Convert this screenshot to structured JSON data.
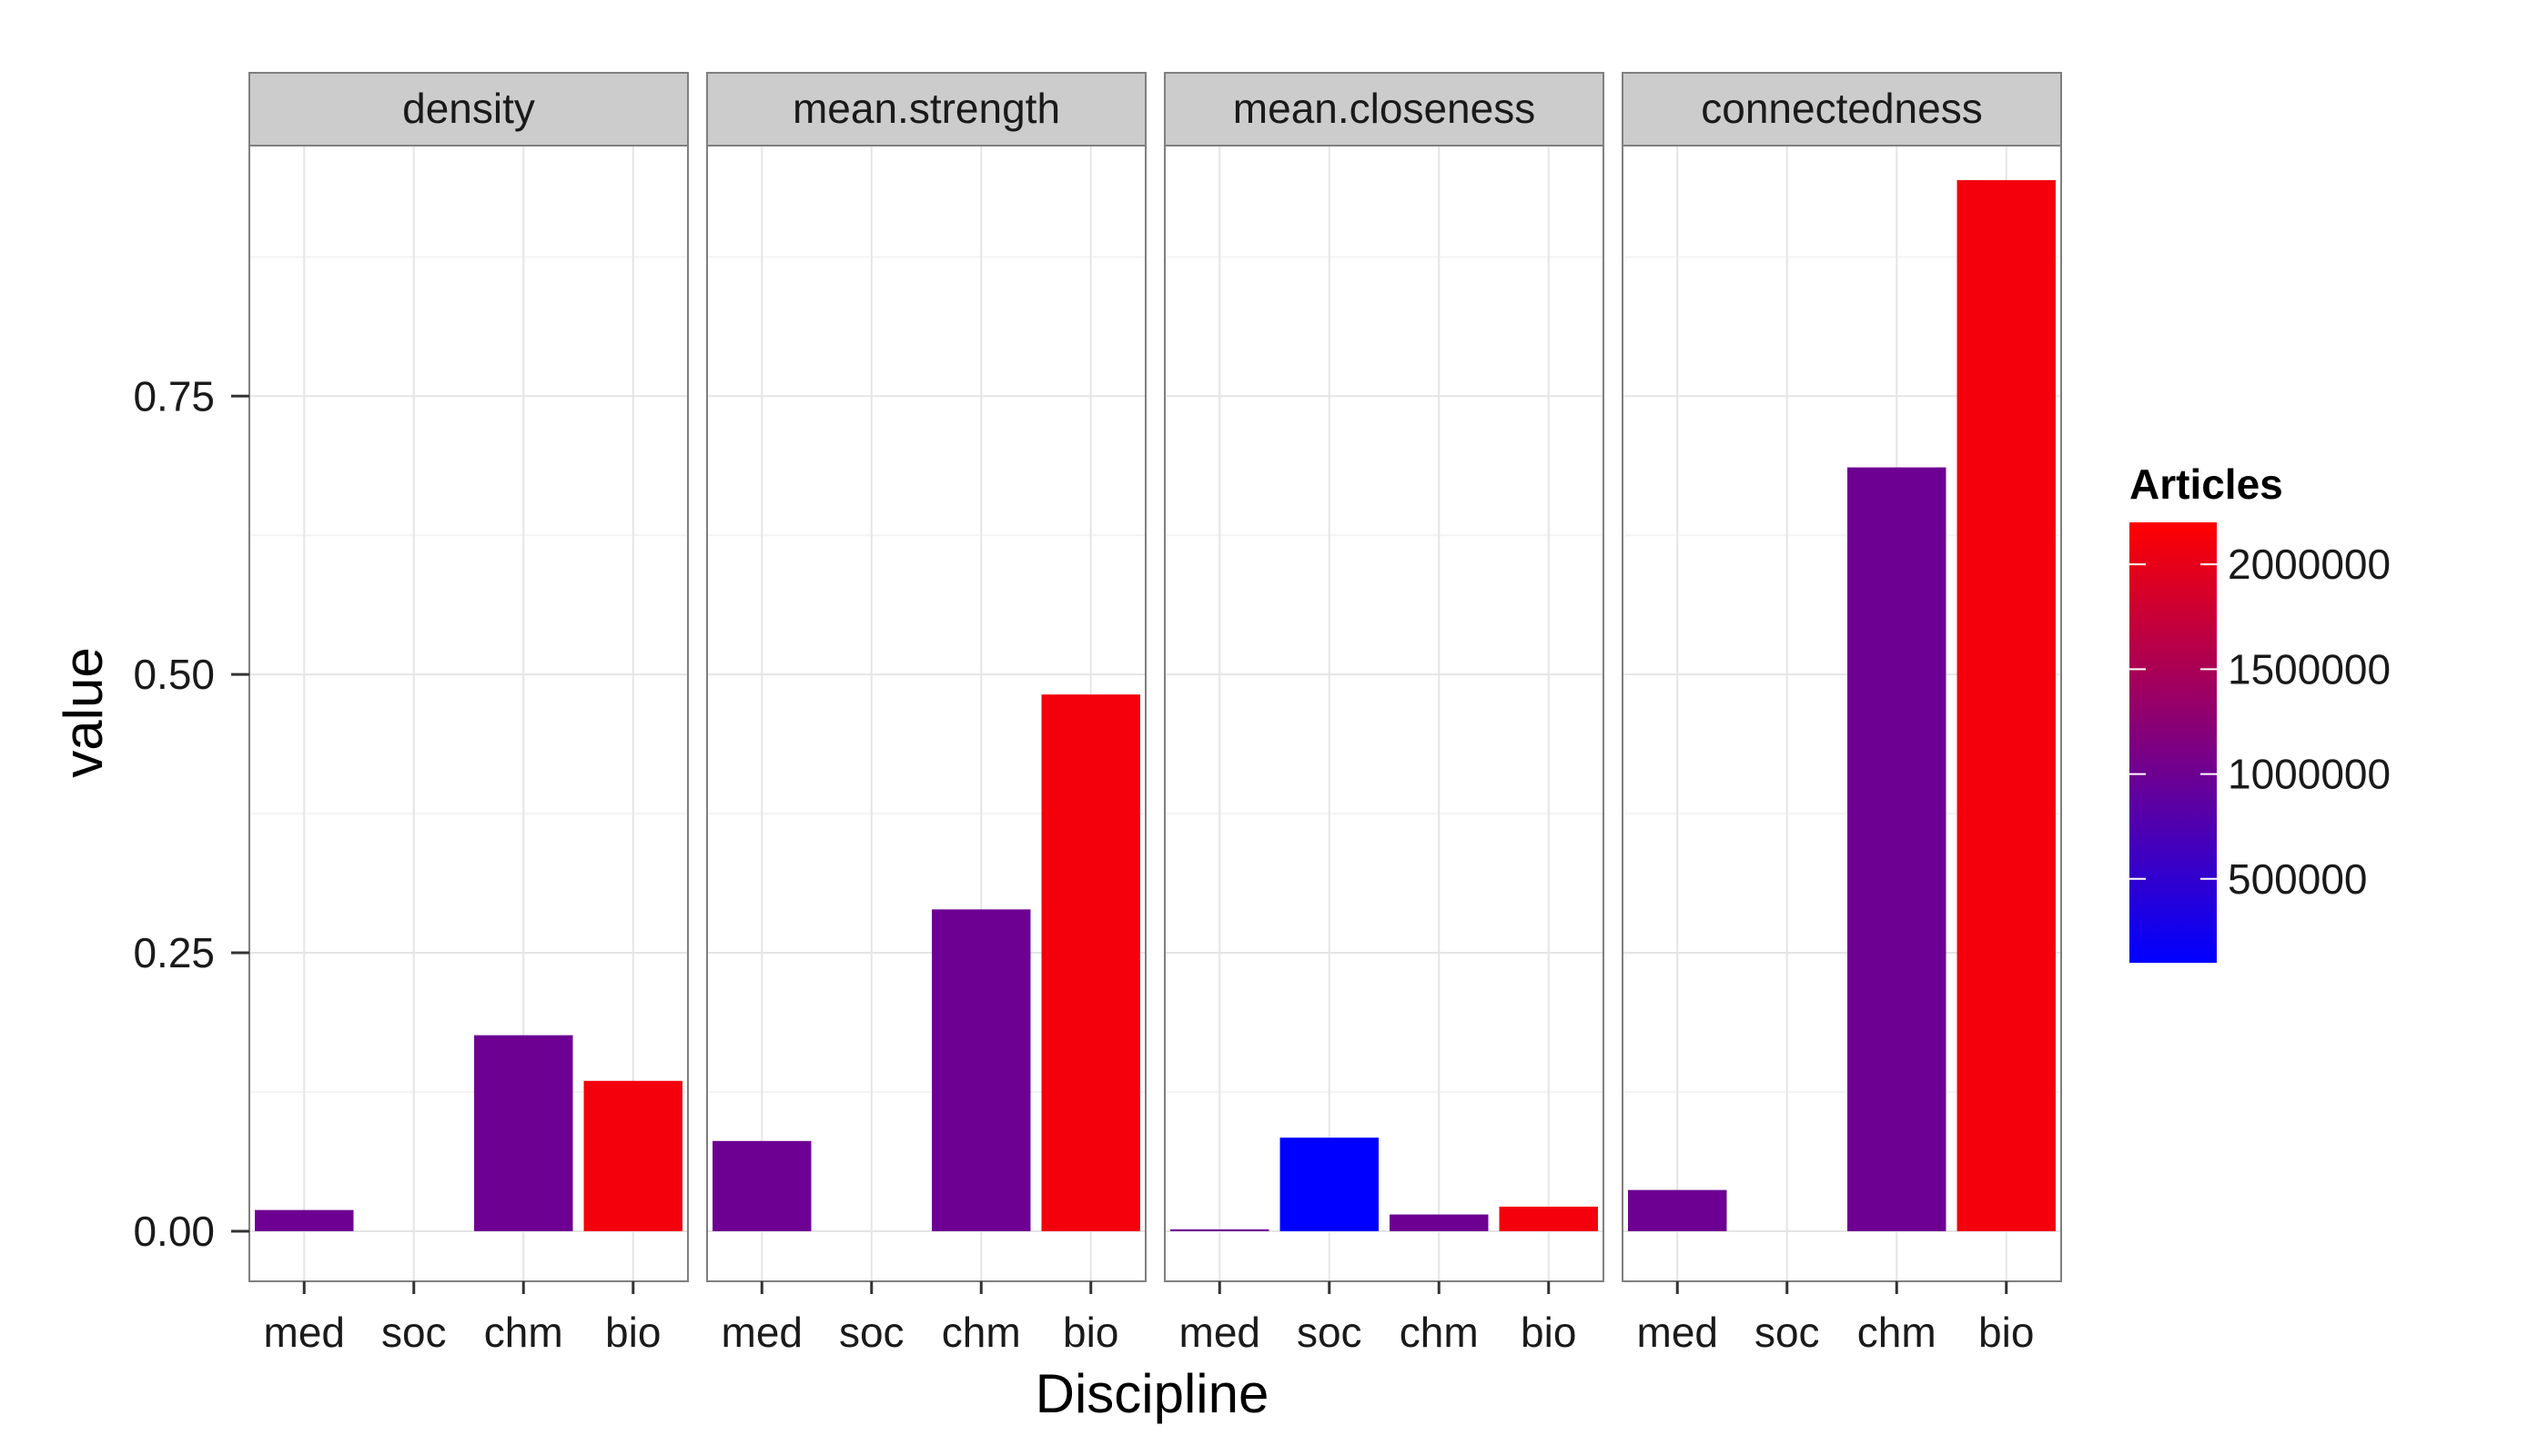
{
  "chart_data": {
    "type": "bar",
    "xlabel": "Discipline",
    "ylabel": "value",
    "categories": [
      "med",
      "soc",
      "chm",
      "bio"
    ],
    "ylim": [
      -0.045,
      0.975
    ],
    "yticks": [
      {
        "value": 0.0,
        "label": "0.00"
      },
      {
        "value": 0.25,
        "label": "0.25"
      },
      {
        "value": 0.5,
        "label": "0.50"
      },
      {
        "value": 0.75,
        "label": "0.75"
      }
    ],
    "grid": true,
    "articles": {
      "med": 1000000,
      "soc": 100000,
      "chm": 1000000,
      "bio": 2100000
    },
    "panels": [
      {
        "name": "density",
        "values": [
          0.019,
          0.0,
          0.176,
          0.135
        ]
      },
      {
        "name": "mean.strength",
        "values": [
          0.081,
          0.0,
          0.289,
          0.482
        ]
      },
      {
        "name": "mean.closeness",
        "values": [
          0.001,
          0.084,
          0.015,
          0.022
        ]
      },
      {
        "name": "connectedness",
        "values": [
          0.037,
          0.0,
          0.686,
          0.944
        ]
      }
    ],
    "legend": {
      "title": "Articles",
      "position": "right",
      "min": 100000,
      "max": 2200000,
      "low_color": "#0000ff",
      "high_color": "#ff0000",
      "ticks": [
        {
          "value": 2000000,
          "label": "2000000"
        },
        {
          "value": 1500000,
          "label": "1500000"
        },
        {
          "value": 1000000,
          "label": "1000000"
        },
        {
          "value": 500000,
          "label": "500000"
        }
      ]
    }
  }
}
